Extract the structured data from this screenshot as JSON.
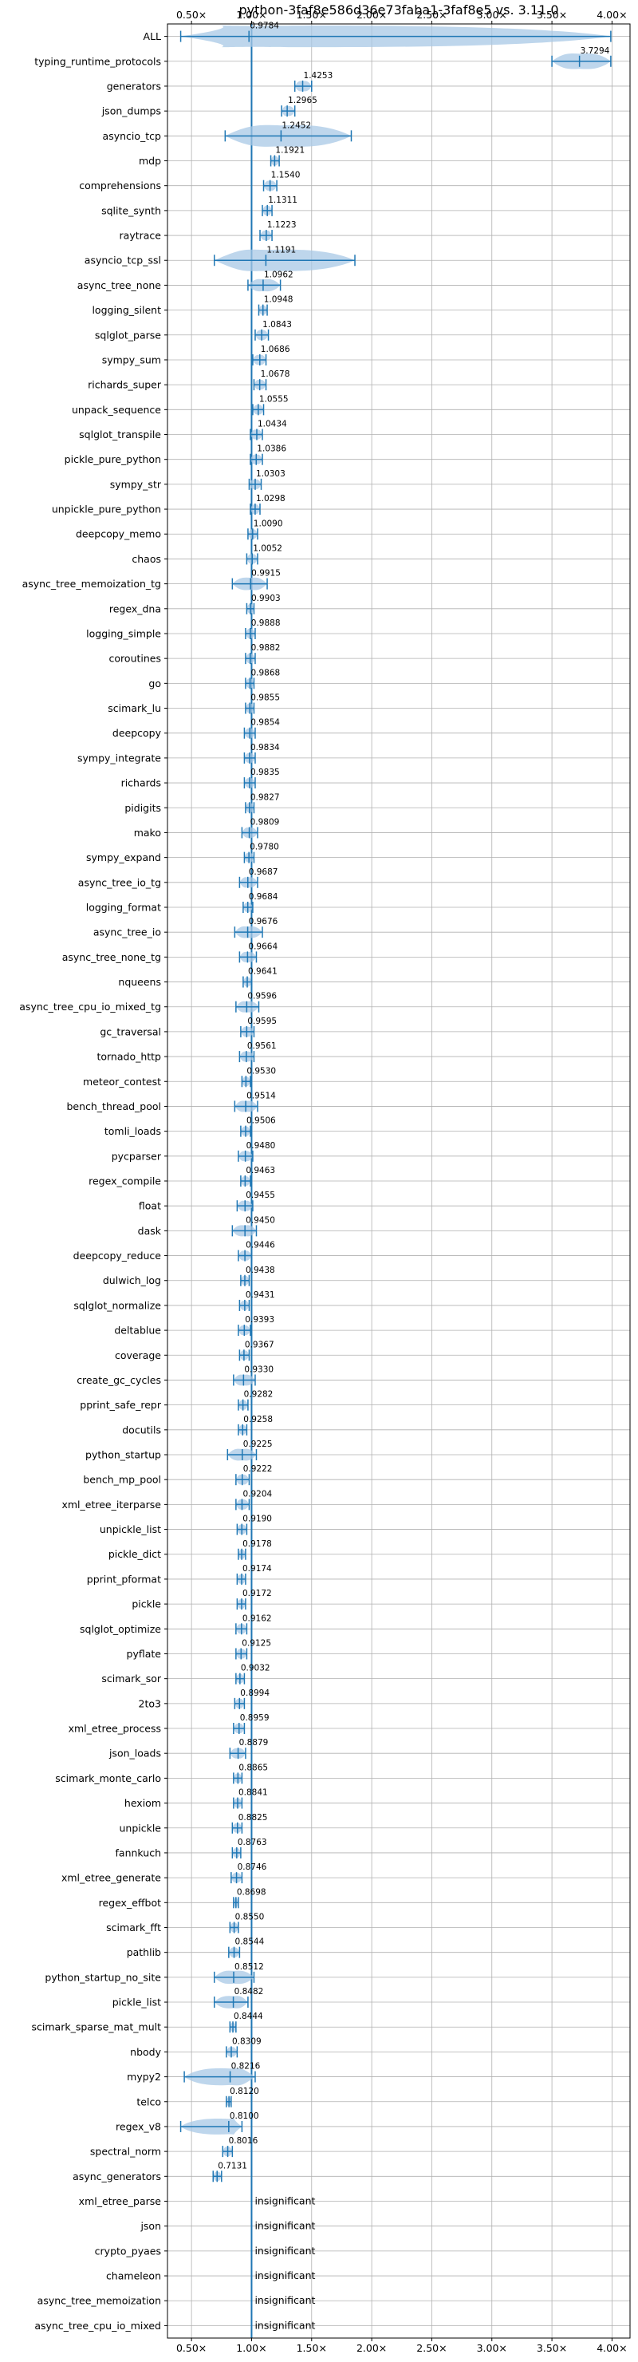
{
  "chart_data": {
    "type": "violin",
    "title": "python-3faf8e586d36e73faba1-3faf8e5 vs. 3.11.0",
    "xlim": [
      0.3,
      4.15
    ],
    "xticks": [
      0.5,
      1.0,
      1.5,
      2.0,
      2.5,
      3.0,
      3.5,
      4.0
    ],
    "xtick_labels": [
      "0.50×",
      "1.00×",
      "1.50×",
      "2.00×",
      "2.50×",
      "3.00×",
      "3.50×",
      "4.00×"
    ],
    "reference_line": 1.0,
    "grid": true,
    "insignificant_label": "insignificant",
    "series": [
      {
        "name": "ALL",
        "value": 0.9784,
        "label": "0.9784",
        "min": 0.41,
        "max": 3.99
      },
      {
        "name": "typing_runtime_protocols",
        "value": 3.7294,
        "label": "3.7294",
        "min": 3.5,
        "max": 3.99
      },
      {
        "name": "generators",
        "value": 1.4253,
        "label": "1.4253",
        "min": 1.36,
        "max": 1.5
      },
      {
        "name": "json_dumps",
        "value": 1.2965,
        "label": "1.2965",
        "min": 1.25,
        "max": 1.36
      },
      {
        "name": "asyncio_tcp",
        "value": 1.2452,
        "label": "1.2452",
        "min": 0.78,
        "max": 1.83
      },
      {
        "name": "mdp",
        "value": 1.1921,
        "label": "1.1921",
        "min": 1.16,
        "max": 1.23
      },
      {
        "name": "comprehensions",
        "value": 1.154,
        "label": "1.1540",
        "min": 1.1,
        "max": 1.21
      },
      {
        "name": "sqlite_synth",
        "value": 1.1311,
        "label": "1.1311",
        "min": 1.09,
        "max": 1.17
      },
      {
        "name": "raytrace",
        "value": 1.1223,
        "label": "1.1223",
        "min": 1.07,
        "max": 1.17
      },
      {
        "name": "asyncio_tcp_ssl",
        "value": 1.1191,
        "label": "1.1191",
        "min": 0.69,
        "max": 1.86
      },
      {
        "name": "async_tree_none",
        "value": 1.0962,
        "label": "1.0962",
        "min": 0.97,
        "max": 1.24
      },
      {
        "name": "logging_silent",
        "value": 1.0948,
        "label": "1.0948",
        "min": 1.06,
        "max": 1.13
      },
      {
        "name": "sqlglot_parse",
        "value": 1.0843,
        "label": "1.0843",
        "min": 1.03,
        "max": 1.14
      },
      {
        "name": "sympy_sum",
        "value": 1.0686,
        "label": "1.0686",
        "min": 1.01,
        "max": 1.12
      },
      {
        "name": "richards_super",
        "value": 1.0678,
        "label": "1.0678",
        "min": 1.02,
        "max": 1.12
      },
      {
        "name": "unpack_sequence",
        "value": 1.0555,
        "label": "1.0555",
        "min": 1.01,
        "max": 1.1
      },
      {
        "name": "sqlglot_transpile",
        "value": 1.0434,
        "label": "1.0434",
        "min": 0.99,
        "max": 1.09
      },
      {
        "name": "pickle_pure_python",
        "value": 1.0386,
        "label": "1.0386",
        "min": 0.99,
        "max": 1.09
      },
      {
        "name": "sympy_str",
        "value": 1.0303,
        "label": "1.0303",
        "min": 0.98,
        "max": 1.08
      },
      {
        "name": "unpickle_pure_python",
        "value": 1.0298,
        "label": "1.0298",
        "min": 0.99,
        "max": 1.07
      },
      {
        "name": "deepcopy_memo",
        "value": 1.009,
        "label": "1.0090",
        "min": 0.97,
        "max": 1.05
      },
      {
        "name": "chaos",
        "value": 1.0052,
        "label": "1.0052",
        "min": 0.96,
        "max": 1.05
      },
      {
        "name": "async_tree_memoization_tg",
        "value": 0.9915,
        "label": "0.9915",
        "min": 0.84,
        "max": 1.13
      },
      {
        "name": "regex_dna",
        "value": 0.9903,
        "label": "0.9903",
        "min": 0.96,
        "max": 1.02
      },
      {
        "name": "logging_simple",
        "value": 0.9888,
        "label": "0.9888",
        "min": 0.95,
        "max": 1.03
      },
      {
        "name": "coroutines",
        "value": 0.9882,
        "label": "0.9882",
        "min": 0.95,
        "max": 1.03
      },
      {
        "name": "go",
        "value": 0.9868,
        "label": "0.9868",
        "min": 0.95,
        "max": 1.02
      },
      {
        "name": "scimark_lu",
        "value": 0.9855,
        "label": "0.9855",
        "min": 0.95,
        "max": 1.02
      },
      {
        "name": "deepcopy",
        "value": 0.9854,
        "label": "0.9854",
        "min": 0.94,
        "max": 1.03
      },
      {
        "name": "sympy_integrate",
        "value": 0.9834,
        "label": "0.9834",
        "min": 0.94,
        "max": 1.03
      },
      {
        "name": "richards",
        "value": 0.9835,
        "label": "0.9835",
        "min": 0.94,
        "max": 1.03
      },
      {
        "name": "pidigits",
        "value": 0.9827,
        "label": "0.9827",
        "min": 0.95,
        "max": 1.02
      },
      {
        "name": "mako",
        "value": 0.9809,
        "label": "0.9809",
        "min": 0.92,
        "max": 1.05
      },
      {
        "name": "sympy_expand",
        "value": 0.978,
        "label": "0.9780",
        "min": 0.94,
        "max": 1.02
      },
      {
        "name": "async_tree_io_tg",
        "value": 0.9687,
        "label": "0.9687",
        "min": 0.9,
        "max": 1.05
      },
      {
        "name": "logging_format",
        "value": 0.9684,
        "label": "0.9684",
        "min": 0.93,
        "max": 1.01
      },
      {
        "name": "async_tree_io",
        "value": 0.9676,
        "label": "0.9676",
        "min": 0.86,
        "max": 1.09
      },
      {
        "name": "async_tree_none_tg",
        "value": 0.9664,
        "label": "0.9664",
        "min": 0.9,
        "max": 1.04
      },
      {
        "name": "nqueens",
        "value": 0.9641,
        "label": "0.9641",
        "min": 0.93,
        "max": 1.0
      },
      {
        "name": "async_tree_cpu_io_mixed_tg",
        "value": 0.9596,
        "label": "0.9596",
        "min": 0.87,
        "max": 1.06
      },
      {
        "name": "gc_traversal",
        "value": 0.9595,
        "label": "0.9595",
        "min": 0.91,
        "max": 1.02
      },
      {
        "name": "tornado_http",
        "value": 0.9561,
        "label": "0.9561",
        "min": 0.9,
        "max": 1.02
      },
      {
        "name": "meteor_contest",
        "value": 0.953,
        "label": "0.9530",
        "min": 0.92,
        "max": 0.99
      },
      {
        "name": "bench_thread_pool",
        "value": 0.9514,
        "label": "0.9514",
        "min": 0.86,
        "max": 1.05
      },
      {
        "name": "tomli_loads",
        "value": 0.9506,
        "label": "0.9506",
        "min": 0.91,
        "max": 0.99
      },
      {
        "name": "pycparser",
        "value": 0.948,
        "label": "0.9480",
        "min": 0.89,
        "max": 1.01
      },
      {
        "name": "regex_compile",
        "value": 0.9463,
        "label": "0.9463",
        "min": 0.91,
        "max": 0.99
      },
      {
        "name": "float",
        "value": 0.9455,
        "label": "0.9455",
        "min": 0.88,
        "max": 1.01
      },
      {
        "name": "dask",
        "value": 0.945,
        "label": "0.9450",
        "min": 0.84,
        "max": 1.04
      },
      {
        "name": "deepcopy_reduce",
        "value": 0.9446,
        "label": "0.9446",
        "min": 0.89,
        "max": 1.0
      },
      {
        "name": "dulwich_log",
        "value": 0.9438,
        "label": "0.9438",
        "min": 0.91,
        "max": 0.98
      },
      {
        "name": "sqlglot_normalize",
        "value": 0.9431,
        "label": "0.9431",
        "min": 0.9,
        "max": 0.98
      },
      {
        "name": "deltablue",
        "value": 0.9393,
        "label": "0.9393",
        "min": 0.89,
        "max": 0.99
      },
      {
        "name": "coverage",
        "value": 0.9367,
        "label": "0.9367",
        "min": 0.9,
        "max": 0.98
      },
      {
        "name": "create_gc_cycles",
        "value": 0.933,
        "label": "0.9330",
        "min": 0.85,
        "max": 1.03
      },
      {
        "name": "pprint_safe_repr",
        "value": 0.9282,
        "label": "0.9282",
        "min": 0.89,
        "max": 0.97
      },
      {
        "name": "docutils",
        "value": 0.9258,
        "label": "0.9258",
        "min": 0.89,
        "max": 0.96
      },
      {
        "name": "python_startup",
        "value": 0.9225,
        "label": "0.9225",
        "min": 0.8,
        "max": 1.04
      },
      {
        "name": "bench_mp_pool",
        "value": 0.9222,
        "label": "0.9222",
        "min": 0.87,
        "max": 0.98
      },
      {
        "name": "xml_etree_iterparse",
        "value": 0.9204,
        "label": "0.9204",
        "min": 0.87,
        "max": 0.98
      },
      {
        "name": "unpickle_list",
        "value": 0.919,
        "label": "0.9190",
        "min": 0.88,
        "max": 0.96
      },
      {
        "name": "pickle_dict",
        "value": 0.9178,
        "label": "0.9178",
        "min": 0.89,
        "max": 0.95
      },
      {
        "name": "pprint_pformat",
        "value": 0.9174,
        "label": "0.9174",
        "min": 0.88,
        "max": 0.95
      },
      {
        "name": "pickle",
        "value": 0.9172,
        "label": "0.9172",
        "min": 0.88,
        "max": 0.95
      },
      {
        "name": "sqlglot_optimize",
        "value": 0.9162,
        "label": "0.9162",
        "min": 0.87,
        "max": 0.96
      },
      {
        "name": "pyflate",
        "value": 0.9125,
        "label": "0.9125",
        "min": 0.87,
        "max": 0.96
      },
      {
        "name": "scimark_sor",
        "value": 0.9032,
        "label": "0.9032",
        "min": 0.87,
        "max": 0.94
      },
      {
        "name": "2to3",
        "value": 0.8994,
        "label": "0.8994",
        "min": 0.86,
        "max": 0.94
      },
      {
        "name": "xml_etree_process",
        "value": 0.8959,
        "label": "0.8959",
        "min": 0.85,
        "max": 0.94
      },
      {
        "name": "json_loads",
        "value": 0.8879,
        "label": "0.8879",
        "min": 0.82,
        "max": 0.95
      },
      {
        "name": "scimark_monte_carlo",
        "value": 0.8865,
        "label": "0.8865",
        "min": 0.85,
        "max": 0.92
      },
      {
        "name": "hexiom",
        "value": 0.8841,
        "label": "0.8841",
        "min": 0.85,
        "max": 0.92
      },
      {
        "name": "unpickle",
        "value": 0.8825,
        "label": "0.8825",
        "min": 0.84,
        "max": 0.92
      },
      {
        "name": "fannkuch",
        "value": 0.8763,
        "label": "0.8763",
        "min": 0.84,
        "max": 0.91
      },
      {
        "name": "xml_etree_generate",
        "value": 0.8746,
        "label": "0.8746",
        "min": 0.83,
        "max": 0.92
      },
      {
        "name": "regex_effbot",
        "value": 0.8698,
        "label": "0.8698",
        "min": 0.85,
        "max": 0.89
      },
      {
        "name": "scimark_fft",
        "value": 0.855,
        "label": "0.8550",
        "min": 0.82,
        "max": 0.89
      },
      {
        "name": "pathlib",
        "value": 0.8544,
        "label": "0.8544",
        "min": 0.81,
        "max": 0.9
      },
      {
        "name": "python_startup_no_site",
        "value": 0.8512,
        "label": "0.8512",
        "min": 0.69,
        "max": 1.02
      },
      {
        "name": "pickle_list",
        "value": 0.8482,
        "label": "0.8482",
        "min": 0.69,
        "max": 0.97
      },
      {
        "name": "scimark_sparse_mat_mult",
        "value": 0.8444,
        "label": "0.8444",
        "min": 0.82,
        "max": 0.87
      },
      {
        "name": "nbody",
        "value": 0.8309,
        "label": "0.8309",
        "min": 0.79,
        "max": 0.88
      },
      {
        "name": "mypy2",
        "value": 0.8216,
        "label": "0.8216",
        "min": 0.44,
        "max": 1.03
      },
      {
        "name": "telco",
        "value": 0.812,
        "label": "0.8120",
        "min": 0.79,
        "max": 0.83
      },
      {
        "name": "regex_v8",
        "value": 0.81,
        "label": "0.8100",
        "min": 0.41,
        "max": 0.92
      },
      {
        "name": "spectral_norm",
        "value": 0.8016,
        "label": "0.8016",
        "min": 0.76,
        "max": 0.84
      },
      {
        "name": "async_generators",
        "value": 0.7131,
        "label": "0.7131",
        "min": 0.68,
        "max": 0.75
      },
      {
        "name": "xml_etree_parse",
        "insignificant": true
      },
      {
        "name": "json",
        "insignificant": true
      },
      {
        "name": "crypto_pyaes",
        "insignificant": true
      },
      {
        "name": "chameleon",
        "insignificant": true
      },
      {
        "name": "async_tree_memoization",
        "insignificant": true
      },
      {
        "name": "async_tree_cpu_io_mixed",
        "insignificant": true
      }
    ]
  },
  "colors": {
    "violin_fill": "#a8c8e6",
    "line": "#1f77b4",
    "grid": "#b0b0b0",
    "axis": "#000000"
  }
}
